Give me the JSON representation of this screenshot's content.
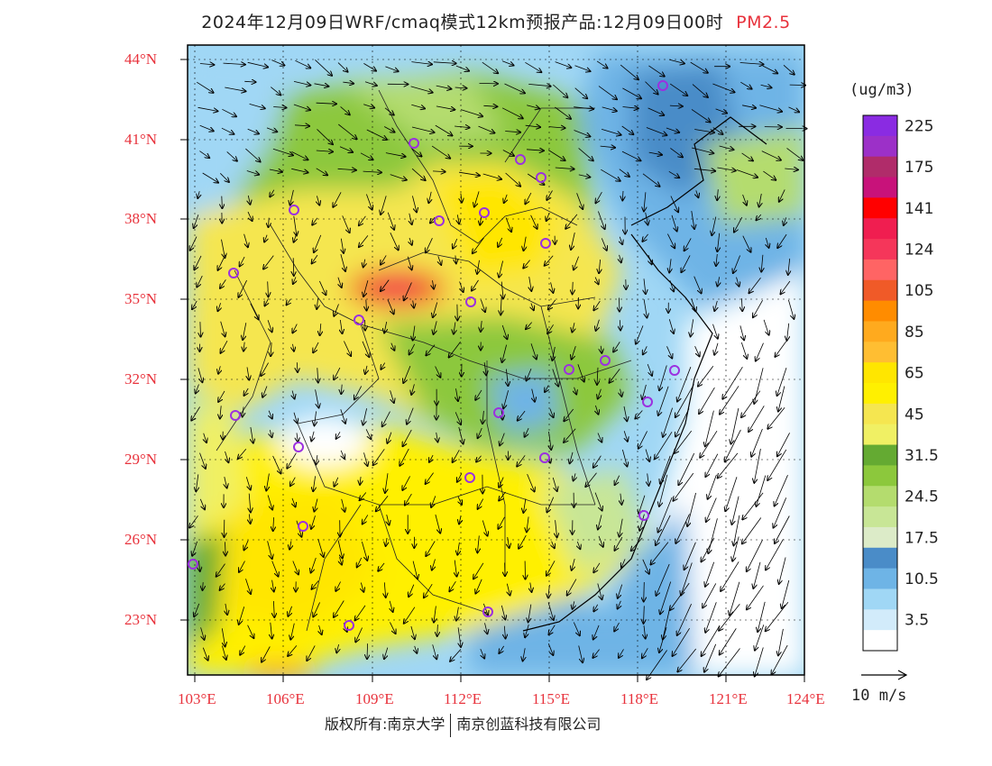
{
  "title": {
    "main": "2024年12月09日WRF/cmaq模式12km预报产品:12月09日00时",
    "variable": "PM2.5"
  },
  "map": {
    "lat_labels": [
      "44°N",
      "41°N",
      "38°N",
      "35°N",
      "32°N",
      "29°N",
      "26°N",
      "23°N"
    ],
    "lon_labels": [
      "103°E",
      "106°E",
      "109°E",
      "112°E",
      "115°E",
      "118°E",
      "121°E",
      "124°E"
    ],
    "colors": {
      "border": "#000000",
      "label": "#e8323c",
      "city_marker": "#9b30e0"
    }
  },
  "colorbar": {
    "unit": "(ug/m3)",
    "levels": [
      {
        "label": "225",
        "color": "#8a2be2"
      },
      {
        "label": "",
        "color": "#9c30c8"
      },
      {
        "label": "175",
        "color": "#b02c6a"
      },
      {
        "label": "",
        "color": "#c8127a"
      },
      {
        "label": "141",
        "color": "#ff0000"
      },
      {
        "label": "",
        "color": "#f01e50"
      },
      {
        "label": "124",
        "color": "#f5365a"
      },
      {
        "label": "",
        "color": "#ff6464"
      },
      {
        "label": "105",
        "color": "#f05a28"
      },
      {
        "label": "",
        "color": "#ff8c00"
      },
      {
        "label": "85",
        "color": "#ffaa1e"
      },
      {
        "label": "",
        "color": "#ffbe32"
      },
      {
        "label": "65",
        "color": "#ffe600"
      },
      {
        "label": "",
        "color": "#fff000"
      },
      {
        "label": "45",
        "color": "#f5e650"
      },
      {
        "label": "",
        "color": "#f0f064"
      },
      {
        "label": "31.5",
        "color": "#64aa32"
      },
      {
        "label": "",
        "color": "#8cc83c"
      },
      {
        "label": "24.5",
        "color": "#b4dc6e"
      },
      {
        "label": "",
        "color": "#c8e696"
      },
      {
        "label": "17.5",
        "color": "#dcebc8"
      },
      {
        "label": "",
        "color": "#4a8cc8"
      },
      {
        "label": "10.5",
        "color": "#6eb4e6"
      },
      {
        "label": "",
        "color": "#a0d7f5"
      },
      {
        "label": "3.5",
        "color": "#d2ebfa"
      },
      {
        "label": "",
        "color": "#ffffff"
      }
    ]
  },
  "wind_reference": {
    "label": "10 m/s"
  },
  "footer": {
    "copyright": "版权所有:南京大学",
    "company": "南京创蓝科技有限公司"
  }
}
